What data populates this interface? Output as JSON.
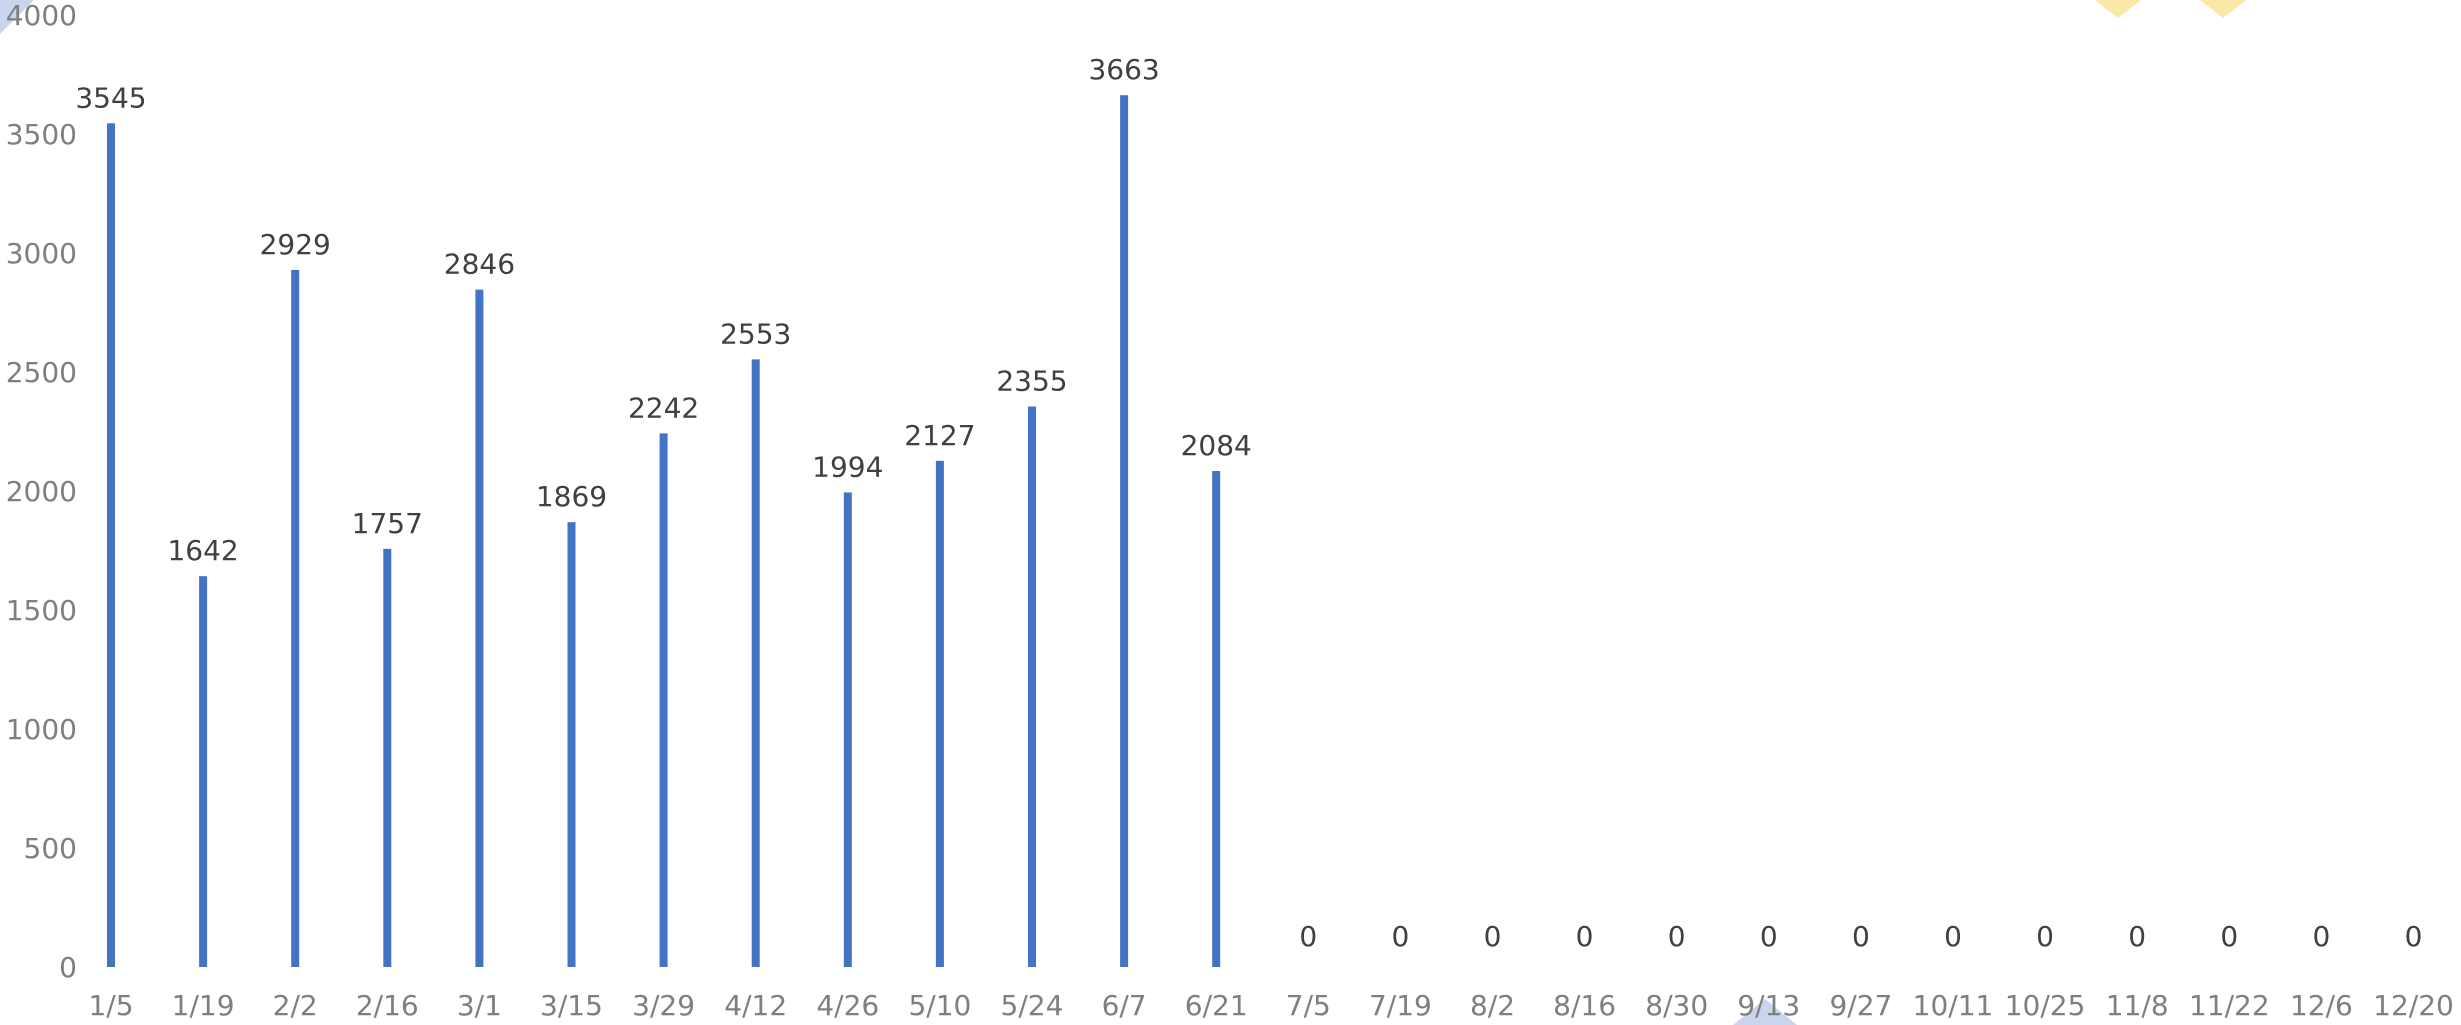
{
  "chart_data": {
    "type": "bar",
    "title": "",
    "xlabel": "",
    "ylabel": "",
    "ylim": [
      0,
      4000
    ],
    "yticks": [
      0,
      500,
      1000,
      1500,
      2000,
      2500,
      3000,
      3500,
      4000
    ],
    "grid": false,
    "legend": "none",
    "bar_color": "#4472C4",
    "categories": [
      "1/5",
      "1/19",
      "2/2",
      "2/16",
      "3/1",
      "3/15",
      "3/29",
      "4/12",
      "4/26",
      "5/10",
      "5/24",
      "6/7",
      "6/21",
      "7/5",
      "7/19",
      "8/2",
      "8/16",
      "8/30",
      "9/13",
      "9/27",
      "10/11",
      "10/25",
      "11/8",
      "11/22",
      "12/6",
      "12/20"
    ],
    "values": [
      3545,
      1642,
      2929,
      1757,
      2846,
      1869,
      2242,
      2553,
      1994,
      2127,
      2355,
      3663,
      2084,
      0,
      0,
      0,
      0,
      0,
      0,
      0,
      0,
      0,
      0,
      0,
      0,
      0
    ]
  }
}
